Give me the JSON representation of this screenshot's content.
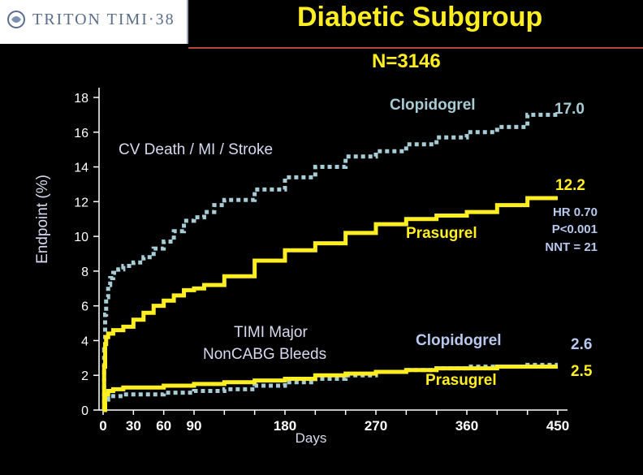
{
  "header": {
    "logo_text": "TRITON TIMI·38",
    "title": "Diabetic Subgroup",
    "subtitle": "N=3146"
  },
  "colors": {
    "background": "#000000",
    "title": "#ffee22",
    "clopidogrel": "#a8ccd6",
    "prasugrel": "#ffee22",
    "stats": "#b8c8ee",
    "labels": "#d8d8f0",
    "axis": "#ffffff"
  },
  "chart_data": {
    "type": "line",
    "xlabel": "Days",
    "ylabel": "Endpoint (%)",
    "xlim": [
      0,
      450
    ],
    "ylim": [
      0,
      18
    ],
    "x_ticks": [
      0,
      30,
      60,
      90,
      180,
      270,
      360,
      450
    ],
    "y_ticks": [
      0,
      2,
      4,
      6,
      8,
      10,
      12,
      14,
      16,
      18
    ],
    "annotations": {
      "efficacy_label": "CV Death / MI / Stroke",
      "bleeding_label_line1": "TIMI Major",
      "bleeding_label_line2": "NonCABG Bleeds",
      "clopi_efficacy_label": "Clopidogrel",
      "prasu_efficacy_label": "Prasugrel",
      "clopi_bleed_label": "Clopidogrel",
      "prasu_bleed_label": "Prasugrel",
      "clopi_efficacy_end": "17.0",
      "prasu_efficacy_end": "12.2",
      "clopi_bleed_end": "2.6",
      "prasu_bleed_end": "2.5",
      "hr": "HR 0.70",
      "p": "P<0.001",
      "nnt": "NNT = 21"
    },
    "series": [
      {
        "name": "Clopidogrel",
        "group": "CV Death / MI / Stroke",
        "style": "dotted",
        "x": [
          0,
          1,
          2,
          3,
          5,
          7,
          10,
          15,
          20,
          30,
          40,
          50,
          60,
          70,
          80,
          90,
          100,
          110,
          120,
          150,
          180,
          210,
          240,
          270,
          300,
          330,
          360,
          390,
          420,
          450
        ],
        "y": [
          0,
          3.5,
          5.5,
          6.5,
          7.2,
          7.6,
          7.9,
          8.1,
          8.3,
          8.5,
          8.8,
          9.3,
          9.7,
          10.3,
          10.9,
          11.1,
          11.4,
          11.8,
          12.1,
          12.7,
          13.4,
          14.0,
          14.6,
          14.9,
          15.3,
          15.7,
          16.0,
          16.3,
          17.0,
          17.0
        ]
      },
      {
        "name": "Prasugrel",
        "group": "CV Death / MI / Stroke",
        "style": "solid",
        "x": [
          0,
          1,
          2,
          3,
          5,
          10,
          20,
          30,
          40,
          50,
          60,
          70,
          80,
          90,
          100,
          120,
          150,
          180,
          210,
          240,
          270,
          300,
          330,
          360,
          390,
          420,
          450
        ],
        "y": [
          0,
          2.5,
          3.8,
          4.2,
          4.4,
          4.6,
          4.8,
          5.2,
          5.6,
          6.0,
          6.3,
          6.6,
          6.9,
          7.0,
          7.2,
          7.7,
          8.6,
          9.2,
          9.6,
          10.2,
          10.7,
          11.0,
          11.2,
          11.4,
          11.8,
          12.2,
          12.2
        ]
      },
      {
        "name": "Clopidogrel",
        "group": "TIMI Major NonCABG Bleeds",
        "style": "dotted",
        "x": [
          0,
          2,
          5,
          10,
          20,
          30,
          60,
          90,
          120,
          150,
          180,
          210,
          240,
          270,
          300,
          330,
          360,
          390,
          420,
          450
        ],
        "y": [
          0,
          0.6,
          0.8,
          0.8,
          0.9,
          0.9,
          1.0,
          1.1,
          1.2,
          1.4,
          1.6,
          1.8,
          2.0,
          2.2,
          2.3,
          2.4,
          2.5,
          2.5,
          2.6,
          2.6
        ]
      },
      {
        "name": "Prasugrel",
        "group": "TIMI Major NonCABG Bleeds",
        "style": "solid",
        "x": [
          0,
          2,
          5,
          10,
          20,
          30,
          60,
          90,
          120,
          150,
          180,
          210,
          240,
          270,
          300,
          330,
          360,
          390,
          420,
          450
        ],
        "y": [
          0,
          0.9,
          1.1,
          1.2,
          1.3,
          1.3,
          1.4,
          1.5,
          1.6,
          1.7,
          1.8,
          2.0,
          2.1,
          2.2,
          2.3,
          2.4,
          2.4,
          2.5,
          2.5,
          2.5
        ]
      }
    ]
  }
}
